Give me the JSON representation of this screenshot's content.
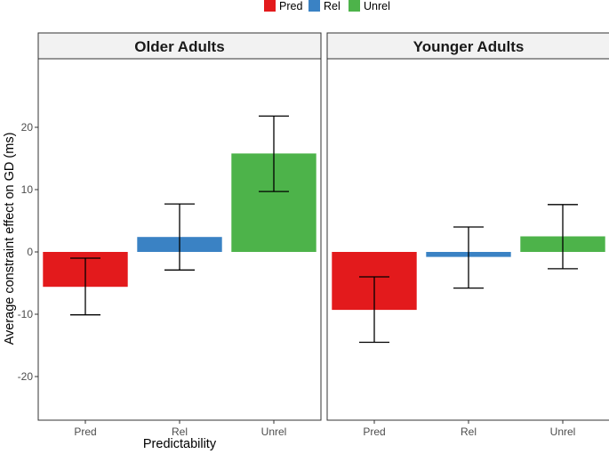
{
  "chart_data": {
    "type": "bar",
    "xlabel": "Predictability",
    "ylabel": "Average constraint effect on GD (ms)",
    "categories": [
      "Pred",
      "Rel",
      "Unrel"
    ],
    "ylim": [
      -27,
      31
    ],
    "yticks": [
      -20,
      -10,
      0,
      10,
      20
    ],
    "ytick_labels": [
      "-20",
      "-10",
      "0",
      "10",
      "20"
    ],
    "legend": [
      {
        "name": "Pred",
        "color": "#e31a1c"
      },
      {
        "name": "Rel",
        "color": "#3a82c4"
      },
      {
        "name": "Unrel",
        "color": "#4db34a"
      }
    ],
    "panels": [
      {
        "title": "Older Adults",
        "values": [
          -5.6,
          2.4,
          15.8
        ],
        "err_low": [
          -10.1,
          -2.9,
          9.7
        ],
        "err_high": [
          -1.0,
          7.7,
          21.8
        ]
      },
      {
        "title": "Younger Adults",
        "values": [
          -9.3,
          -0.8,
          2.5
        ],
        "err_low": [
          -14.5,
          -5.8,
          -2.7
        ],
        "err_high": [
          -4.0,
          4.0,
          7.6
        ]
      }
    ]
  }
}
